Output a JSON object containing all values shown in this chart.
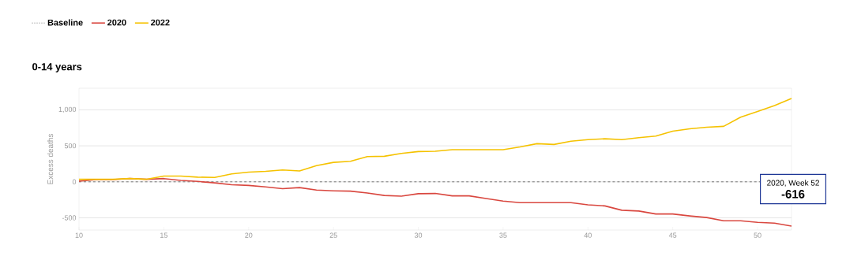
{
  "chart_data": {
    "type": "line",
    "title": "0-14 years",
    "ylabel": "Excess deaths",
    "x": [
      10,
      11,
      12,
      13,
      14,
      15,
      16,
      17,
      18,
      19,
      20,
      21,
      22,
      23,
      24,
      25,
      26,
      27,
      28,
      29,
      30,
      31,
      32,
      33,
      34,
      35,
      36,
      37,
      38,
      39,
      40,
      41,
      42,
      43,
      44,
      45,
      46,
      47,
      48,
      49,
      50,
      51,
      52
    ],
    "series": [
      {
        "name": "2020",
        "color": "#d9473f",
        "values": [
          10,
          30,
          30,
          45,
          35,
          45,
          20,
          5,
          -15,
          -40,
          -50,
          -70,
          -95,
          -80,
          -115,
          -125,
          -130,
          -155,
          -190,
          -200,
          -165,
          -162,
          -195,
          -195,
          -233,
          -267,
          -289,
          -289,
          -289,
          -289,
          -320,
          -335,
          -395,
          -406,
          -447,
          -447,
          -474,
          -496,
          -541,
          -541,
          -564,
          -575,
          -616
        ]
      },
      {
        "name": "2022",
        "color": "#f5c200",
        "values": [
          35,
          35,
          35,
          45,
          35,
          80,
          80,
          65,
          60,
          110,
          135,
          145,
          165,
          150,
          225,
          270,
          285,
          350,
          355,
          395,
          420,
          425,
          447,
          447,
          447,
          447,
          485,
          530,
          519,
          564,
          586,
          598,
          586,
          613,
          635,
          703,
          737,
          759,
          771,
          898,
          977,
          1060,
          1158
        ]
      }
    ],
    "xlim": [
      10,
      52
    ],
    "ylim": [
      -670,
      1300
    ],
    "xticks": [
      10,
      15,
      20,
      25,
      30,
      35,
      40,
      45,
      50
    ],
    "yticks": [
      -500,
      0,
      500,
      {
        "value": 1000,
        "label": "1,000"
      }
    ],
    "ref_lines": [
      {
        "axis": "y",
        "value": 0,
        "label": "Baseline",
        "color": "#777777",
        "line_style": "dashed"
      }
    ],
    "annotations": [
      "2020, Week 52",
      "-616"
    ],
    "grid": "y",
    "legend": "top left",
    "line_style": "solid",
    "marker": "none"
  }
}
